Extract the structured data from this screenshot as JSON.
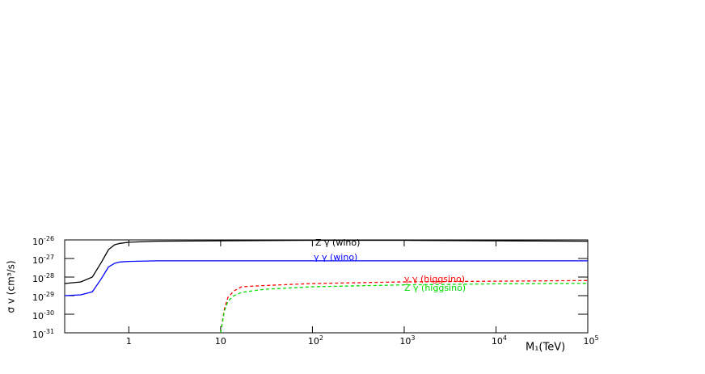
{
  "chart_data": {
    "type": "line",
    "xlabel": "M₁(TeV)",
    "ylabel": "σ v (cm³/s)",
    "xscale": "log",
    "yscale": "log",
    "xlim": [
      0.2,
      100000
    ],
    "ylim": [
      1e-31,
      1e-26
    ],
    "xticks": [
      1,
      10,
      {
        "value": 100,
        "label": "10",
        "exponent": "2"
      },
      {
        "value": 1000,
        "label": "10",
        "exponent": "3"
      },
      {
        "value": 10000,
        "label": "10",
        "exponent": "4"
      },
      {
        "value": 100000,
        "label": "10",
        "exponent": "5"
      }
    ],
    "yticks": [
      {
        "value": 1e-31,
        "label": "10",
        "exponent": "-31"
      },
      {
        "value": 1e-30,
        "label": "10",
        "exponent": "-30"
      },
      {
        "value": 1e-29,
        "label": "10",
        "exponent": "-29"
      },
      {
        "value": 1e-28,
        "label": "10",
        "exponent": "-28"
      },
      {
        "value": 1e-27,
        "label": "10",
        "exponent": "-27"
      },
      {
        "value": 1e-26,
        "label": "10",
        "exponent": "-26"
      }
    ],
    "series": [
      {
        "name": "Z γ (wino)",
        "color": "#000000",
        "dash": false,
        "x": [
          0.2,
          0.3,
          0.4,
          0.5,
          0.6,
          0.7,
          0.8,
          1,
          2,
          10,
          100,
          1000,
          10000,
          100000
        ],
        "values": [
          4.5e-29,
          5.5e-29,
          1e-28,
          6e-28,
          3e-27,
          5.5e-27,
          6.5e-27,
          7.5e-27,
          8.5e-27,
          9e-27,
          9.5e-27,
          9.5e-27,
          9e-27,
          8.5e-27
        ]
      },
      {
        "name": "γ γ (wino)",
        "color": "#0000ff",
        "dash": false,
        "x": [
          0.2,
          0.3,
          0.4,
          0.5,
          0.6,
          0.7,
          0.8,
          1,
          2,
          10,
          100,
          1000,
          10000,
          100000
        ],
        "values": [
          1e-29,
          1.1e-29,
          1.6e-29,
          8e-29,
          3.5e-28,
          5.5e-28,
          6.5e-28,
          7e-28,
          7.5e-28,
          7.5e-28,
          7.5e-28,
          7.5e-28,
          7.5e-28,
          7.5e-28
        ]
      },
      {
        "name": "γ γ (higgsino)",
        "color": "#ff0000",
        "dash": true,
        "x": [
          10,
          11,
          12,
          14,
          17,
          30,
          100,
          1000,
          10000,
          100000
        ],
        "values": [
          1e-31,
          2e-30,
          8e-30,
          1.8e-29,
          3e-29,
          3.5e-29,
          4.5e-29,
          5.5e-29,
          6e-29,
          6.5e-29
        ]
      },
      {
        "name": "Z γ (higgsino)",
        "color": "#00dd00",
        "dash": true,
        "x": [
          10,
          11,
          12,
          14,
          17,
          30,
          100,
          1000,
          10000,
          100000
        ],
        "values": [
          1e-31,
          1.5e-30,
          5e-30,
          1e-29,
          1.5e-29,
          2.2e-29,
          3e-29,
          3.8e-29,
          4.3e-29,
          4.6e-29
        ]
      }
    ]
  }
}
